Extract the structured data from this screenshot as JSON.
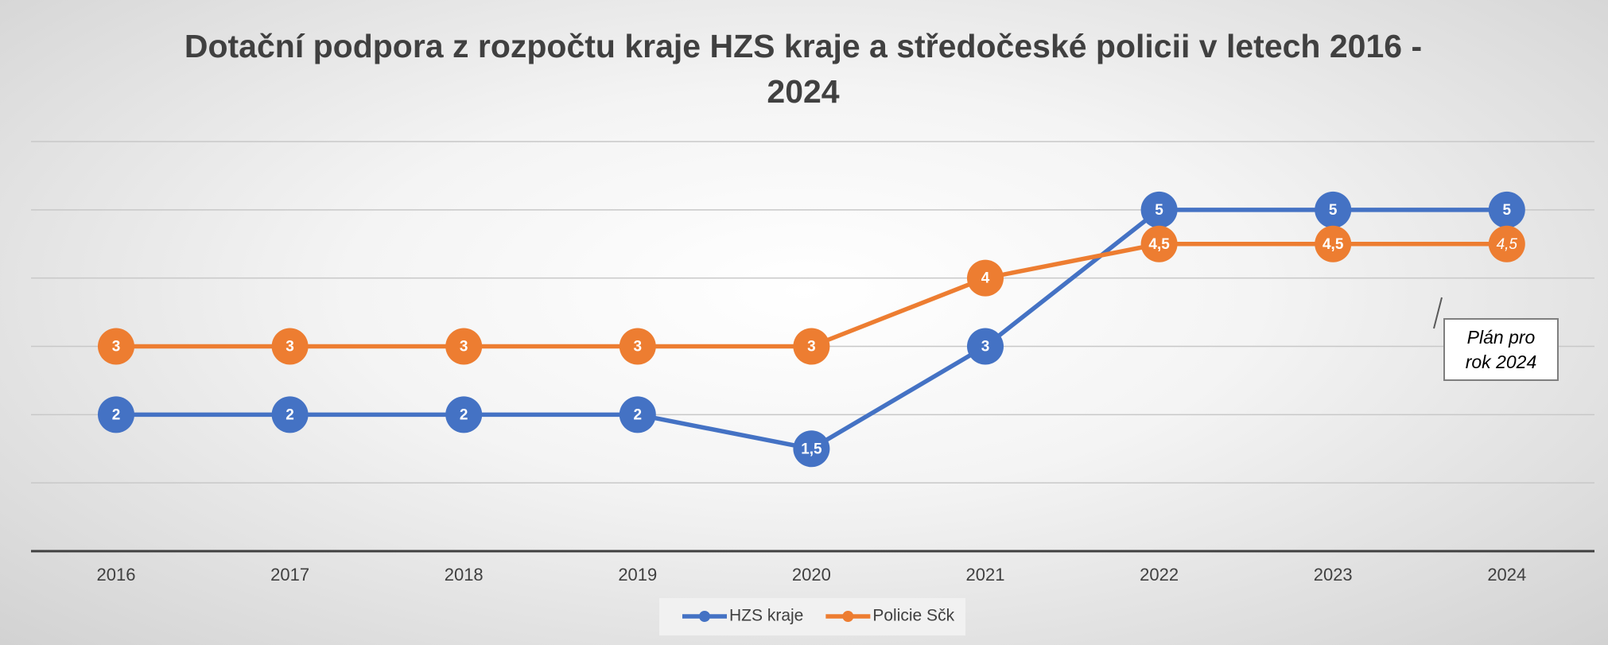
{
  "chart_data": {
    "type": "line",
    "title": "Dotační podpora z rozpočtu kraje HZS kraje a středočeské policii v letech 2016 - 2024",
    "categories": [
      "2016",
      "2017",
      "2018",
      "2019",
      "2020",
      "2021",
      "2022",
      "2023",
      "2024"
    ],
    "series": [
      {
        "name": "HZS kraje",
        "color": "#4472c4",
        "values": [
          2,
          2,
          2,
          2,
          1.5,
          3,
          5,
          5,
          5
        ],
        "value_labels": [
          "2",
          "2",
          "2",
          "2",
          "1,5",
          "3",
          "5",
          "5",
          "5"
        ]
      },
      {
        "name": "Policie Sčk",
        "color": "#ed7d31",
        "values": [
          3,
          3,
          3,
          3,
          3,
          4,
          4.5,
          4.5,
          4.5
        ],
        "value_labels": [
          "3",
          "3",
          "3",
          "3",
          "3",
          "4",
          "4,5",
          "4,5",
          "4,5"
        ]
      }
    ],
    "ylim": [
      0,
      6
    ],
    "yticks": [
      0,
      1,
      2,
      3,
      4,
      5,
      6
    ],
    "grid": true,
    "legend": "bottom",
    "annotation": "Plán pro rok 2024"
  }
}
